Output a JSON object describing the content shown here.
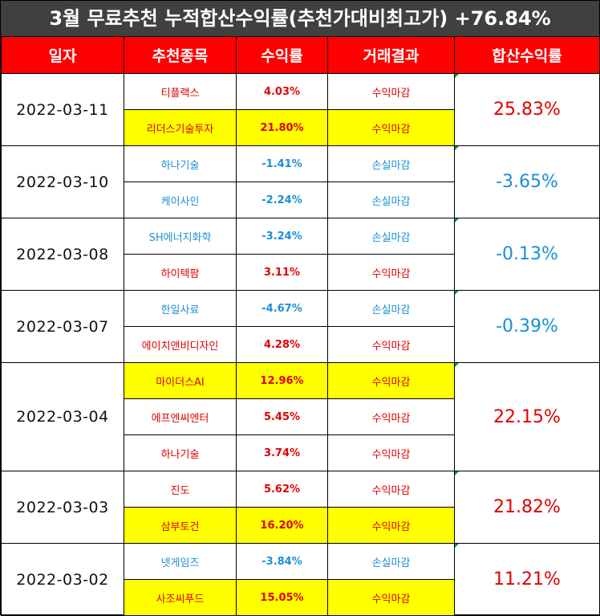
{
  "title": "3월 무료추천 누적합산수익률(추천가대비최고가) +76.84%",
  "headers": [
    "일자",
    "추천종목",
    "수익률",
    "거래결과",
    "합산수익률"
  ],
  "colors": {
    "profit": "#e00000",
    "loss": "#1a8fd6",
    "highlight": "#ffff00",
    "header": "#ff0000",
    "title_bg": "#404040"
  },
  "groups": [
    {
      "date": "2022-03-11",
      "total": "25.83%",
      "total_type": "profit",
      "rows": [
        {
          "name": "티플랙스",
          "rate": "4.03%",
          "result": "수익마감",
          "type": "profit",
          "highlight": false
        },
        {
          "name": "리더스기술투자",
          "rate": "21.80%",
          "result": "수익마감",
          "type": "profit",
          "highlight": true
        }
      ]
    },
    {
      "date": "2022-03-10",
      "total": "-3.65%",
      "total_type": "loss",
      "rows": [
        {
          "name": "하나기술",
          "rate": "-1.41%",
          "result": "손실마감",
          "type": "loss",
          "highlight": false
        },
        {
          "name": "케이사인",
          "rate": "-2.24%",
          "result": "손실마감",
          "type": "loss",
          "highlight": false
        }
      ]
    },
    {
      "date": "2022-03-08",
      "total": "-0.13%",
      "total_type": "loss",
      "rows": [
        {
          "name": "SH에너지화학",
          "rate": "-3.24%",
          "result": "손실마감",
          "type": "loss",
          "highlight": false
        },
        {
          "name": "하이텍팜",
          "rate": "3.11%",
          "result": "수익마감",
          "type": "profit",
          "highlight": false
        }
      ]
    },
    {
      "date": "2022-03-07",
      "total": "-0.39%",
      "total_type": "loss",
      "rows": [
        {
          "name": "한일사료",
          "rate": "-4.67%",
          "result": "손실마감",
          "type": "loss",
          "highlight": false
        },
        {
          "name": "에이치앤비디자인",
          "rate": "4.28%",
          "result": "수익마감",
          "type": "profit",
          "highlight": false
        }
      ]
    },
    {
      "date": "2022-03-04",
      "total": "22.15%",
      "total_type": "profit",
      "rows": [
        {
          "name": "마이더스AI",
          "rate": "12.96%",
          "result": "수익마감",
          "type": "profit",
          "highlight": true
        },
        {
          "name": "에프엔씨엔터",
          "rate": "5.45%",
          "result": "수익마감",
          "type": "profit",
          "highlight": false
        },
        {
          "name": "하나기술",
          "rate": "3.74%",
          "result": "수익마감",
          "type": "profit",
          "highlight": false
        }
      ]
    },
    {
      "date": "2022-03-03",
      "total": "21.82%",
      "total_type": "profit",
      "rows": [
        {
          "name": "진도",
          "rate": "5.62%",
          "result": "수익마감",
          "type": "profit",
          "highlight": false
        },
        {
          "name": "삼부토건",
          "rate": "16.20%",
          "result": "수익마감",
          "type": "profit",
          "highlight": true
        }
      ]
    },
    {
      "date": "2022-03-02",
      "total": "11.21%",
      "total_type": "profit",
      "rows": [
        {
          "name": "넷게임즈",
          "rate": "-3.84%",
          "result": "손실마감",
          "type": "loss",
          "highlight": false
        },
        {
          "name": "사조씨푸드",
          "rate": "15.05%",
          "result": "수익마감",
          "type": "profit",
          "highlight": true
        }
      ]
    }
  ]
}
